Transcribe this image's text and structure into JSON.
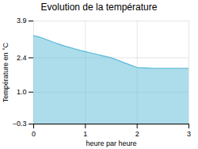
{
  "chart_data": {
    "type": "area",
    "title": "Evolution de la température",
    "xlabel": "heure par heure",
    "ylabel": "Température en °C",
    "x": [
      0,
      0.1,
      0.2,
      0.3,
      0.4,
      0.5,
      0.6,
      0.7,
      0.8,
      0.9,
      1.0,
      1.1,
      1.2,
      1.3,
      1.4,
      1.5,
      1.6,
      1.7,
      1.8,
      1.9,
      2.0,
      2.1,
      2.2,
      2.3,
      2.4,
      2.5,
      2.6,
      2.7,
      2.8,
      2.9,
      3.0
    ],
    "values": [
      3.3,
      3.25,
      3.18,
      3.1,
      3.02,
      2.95,
      2.88,
      2.82,
      2.76,
      2.7,
      2.65,
      2.6,
      2.55,
      2.5,
      2.45,
      2.4,
      2.32,
      2.24,
      2.16,
      2.08,
      2.0,
      1.99,
      1.98,
      1.97,
      1.97,
      1.97,
      1.97,
      1.97,
      1.97,
      1.97,
      1.97
    ],
    "color": "#5bbbd8",
    "xlim": [
      0,
      3
    ],
    "ylim": [
      -0.3,
      3.9
    ],
    "xticks": [
      0,
      1,
      2,
      3
    ],
    "yticks": [
      -0.3,
      {
        "value": 1.0,
        "label": "1.0"
      },
      2.4,
      3.9
    ],
    "grid": true
  }
}
